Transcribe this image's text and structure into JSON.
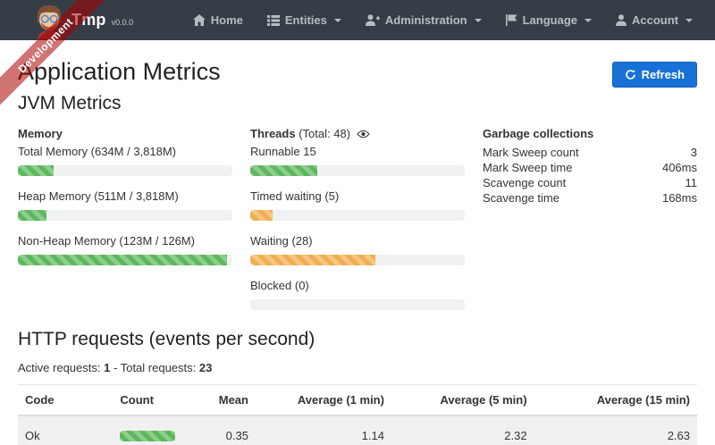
{
  "navbar": {
    "brand": "Tmp",
    "version": "v0.0.0",
    "items": [
      {
        "label": "Home",
        "icon": "home-icon",
        "caret": false
      },
      {
        "label": "Entities",
        "icon": "list-icon",
        "caret": true
      },
      {
        "label": "Administration",
        "icon": "user-plus-icon",
        "caret": true
      },
      {
        "label": "Language",
        "icon": "flag-icon",
        "caret": true
      },
      {
        "label": "Account",
        "icon": "user-icon",
        "caret": true
      }
    ]
  },
  "ribbon": {
    "label": "Development"
  },
  "page": {
    "title": "Application Metrics",
    "refresh_label": "Refresh",
    "jvm": {
      "title": "JVM Metrics",
      "memory": {
        "title": "Memory",
        "bars": [
          {
            "label": "Total Memory (634M / 3,818M)",
            "percent": 16.6,
            "color": "green"
          },
          {
            "label": "Heap Memory (511M / 3,818M)",
            "percent": 13.4,
            "color": "green"
          },
          {
            "label": "Non-Heap Memory (123M / 126M)",
            "percent": 97.6,
            "color": "green"
          }
        ]
      },
      "threads": {
        "title": "Threads",
        "total_label": "(Total: 48)",
        "bars": [
          {
            "label": "Runnable 15",
            "percent": 31.2,
            "color": "green"
          },
          {
            "label": "Timed waiting (5)",
            "percent": 10.4,
            "color": "orange"
          },
          {
            "label": "Waiting (28)",
            "percent": 58.3,
            "color": "orange"
          },
          {
            "label": "Blocked (0)",
            "percent": 0,
            "color": "green"
          }
        ]
      },
      "gc": {
        "title": "Garbage collections",
        "rows": [
          {
            "label": "Mark Sweep count",
            "value": "3"
          },
          {
            "label": "Mark Sweep time",
            "value": "406ms"
          },
          {
            "label": "Scavenge count",
            "value": "11"
          },
          {
            "label": "Scavenge time",
            "value": "168ms"
          }
        ]
      }
    },
    "http": {
      "title": "HTTP requests (events per second)",
      "active_label": "Active requests:",
      "active_value": "1",
      "separator": "-",
      "total_label": "Total requests:",
      "total_value": "23",
      "table": {
        "headers": [
          "Code",
          "Count",
          "Mean",
          "Average (1 min)",
          "Average (5 min)",
          "Average (15 min)"
        ],
        "rows": [
          {
            "code": "Ok",
            "count_percent": 100,
            "mean": "0.35",
            "avg1": "1.14",
            "avg5": "2.32",
            "avg15": "2.63"
          }
        ]
      }
    }
  },
  "colors": {
    "navbar_bg": "#353d47",
    "ribbon_bg": "rgba(170,0,0,0.55)",
    "success_green": "#5cb85c",
    "warning_orange": "#f0ad4e",
    "primary_blue": "#1771d6",
    "track_gray": "#f0f1f2",
    "row_stripe": "#f0f0f0"
  }
}
